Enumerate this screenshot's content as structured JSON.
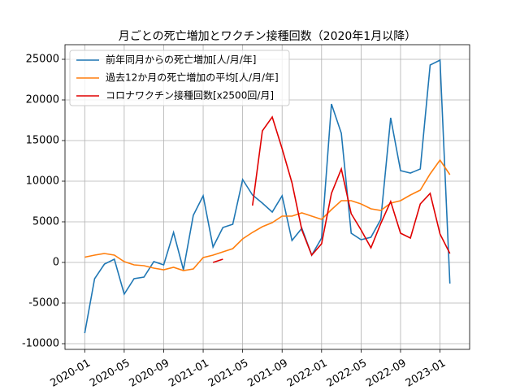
{
  "chart_data": {
    "type": "line",
    "title": "月ごとの死亡増加とワクチン接種回数（2020年1月以降）",
    "x": [
      "2020-01",
      "2020-02",
      "2020-03",
      "2020-04",
      "2020-05",
      "2020-06",
      "2020-07",
      "2020-08",
      "2020-09",
      "2020-10",
      "2020-11",
      "2020-12",
      "2021-01",
      "2021-02",
      "2021-03",
      "2021-04",
      "2021-05",
      "2021-06",
      "2021-07",
      "2021-08",
      "2021-09",
      "2021-10",
      "2021-11",
      "2021-12",
      "2022-01",
      "2022-02",
      "2022-03",
      "2022-04",
      "2022-05",
      "2022-06",
      "2022-07",
      "2022-08",
      "2022-09",
      "2022-10",
      "2022-11",
      "2022-12",
      "2023-01",
      "2023-02"
    ],
    "series": [
      {
        "name": "前年同月からの死亡増加[人/月/年]",
        "color": "#1f77b4",
        "values": [
          -8700,
          -2000,
          -200,
          400,
          -3900,
          -2000,
          -1800,
          100,
          -300,
          3700,
          -900,
          5800,
          8200,
          1900,
          4300,
          4700,
          10200,
          8300,
          7300,
          6200,
          8200,
          2700,
          4200,
          900,
          3000,
          19500,
          15900,
          3600,
          2800,
          3100,
          5300,
          17800,
          11300,
          11000,
          11500,
          24300,
          24900,
          -2600
        ]
      },
      {
        "name": "過去12か月の死亡増加の平均[人/月/年]",
        "color": "#ff7f0e",
        "values": [
          650,
          900,
          1100,
          900,
          100,
          -300,
          -400,
          -700,
          -900,
          -600,
          -1000,
          -800,
          600,
          900,
          1300,
          1700,
          2900,
          3700,
          4400,
          4900,
          5700,
          5700,
          6100,
          5700,
          5300,
          6500,
          7600,
          7600,
          7200,
          6600,
          6400,
          7300,
          7600,
          8300,
          8900,
          10900,
          12600,
          10800
        ]
      },
      {
        "name": "コロナワクチン接種回数[x2500回/月]",
        "color": "#e00000",
        "values": [
          null,
          null,
          null,
          null,
          null,
          null,
          null,
          null,
          null,
          null,
          null,
          null,
          null,
          0,
          400,
          null,
          null,
          7000,
          16200,
          17900,
          14000,
          9800,
          4000,
          900,
          2300,
          8500,
          11500,
          6000,
          4000,
          1800,
          4800,
          7500,
          3600,
          3000,
          7200,
          8500,
          3500,
          1100
        ]
      }
    ],
    "xlim": [
      "2019-11",
      "2023-04"
    ],
    "xticks": [
      "2020-01",
      "2020-05",
      "2020-09",
      "2021-01",
      "2021-05",
      "2021-09",
      "2022-01",
      "2022-05",
      "2022-09",
      "2023-01"
    ],
    "ylim": [
      -10700,
      26800
    ],
    "yticks": [
      -10000,
      -5000,
      0,
      5000,
      10000,
      15000,
      20000,
      25000
    ],
    "grid": true,
    "legend": "upper left"
  }
}
